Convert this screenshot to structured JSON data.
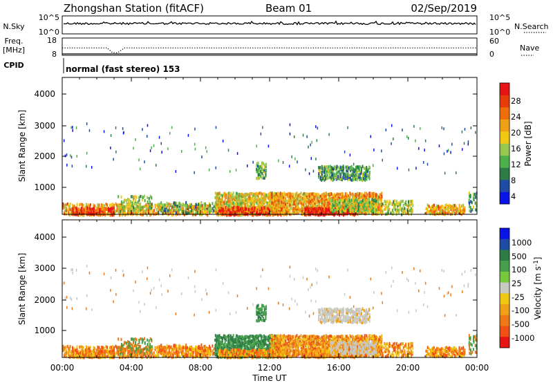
{
  "header": {
    "station": "Zhongshan Station (fitACF)",
    "beam": "Beam 01",
    "date": "02/Sep/2019"
  },
  "top_panels": {
    "nsky_label": "N.Sky",
    "nsearch_label": "N.Search",
    "nsky_ticks": [
      "10^5",
      "10^0"
    ],
    "nsearch_ticks": [
      "10^5",
      "10^0"
    ],
    "freq_label_1": "Freq.",
    "freq_label_2": "[MHz]",
    "freq_ticks": [
      "18",
      "8"
    ],
    "nave_label": "Nave",
    "nave_ticks": [
      "60",
      "0"
    ],
    "cpid_label": "CPID",
    "cpid_value": "normal (fast stereo) 153"
  },
  "colors": {
    "power": [
      "#0a14e6",
      "#1e4ba4",
      "#2d7c46",
      "#4bb24b",
      "#96c850",
      "#f0c814",
      "#f0a014",
      "#f06e0a",
      "#e63c0a",
      "#e61414"
    ],
    "velocity_pos": [
      "#0a14e6",
      "#1e4ba4",
      "#2d7c46",
      "#46a04b",
      "#78c83c"
    ],
    "velocity_ground": "#c8c8c0",
    "velocity_neg": [
      "#f0c814",
      "#f0a014",
      "#f07814",
      "#f05014",
      "#e61414"
    ]
  },
  "chart_data": [
    {
      "type": "line",
      "name": "n-sky-panel",
      "ylabel": "N.Sky",
      "y_scale": "log",
      "ylim": [
        1,
        100000
      ],
      "xlim": [
        "00:00",
        "24:00"
      ],
      "note_series": [
        "N.Sky",
        "N.Search"
      ]
    },
    {
      "type": "line",
      "name": "frequency-nave-panel",
      "ylabel": "Freq. [MHz]",
      "ylim": [
        8,
        18
      ],
      "y2label": "Nave",
      "y2lim": [
        0,
        60
      ],
      "series": [
        {
          "name": "Freq.",
          "x": [
            0,
            2.6,
            3.0,
            3.6,
            24
          ],
          "values": [
            8,
            8,
            8,
            8,
            8
          ]
        },
        {
          "name": "Nave",
          "x": [
            0,
            2.6,
            2.9,
            3.2,
            3.6,
            24
          ],
          "values": [
            26,
            26,
            6,
            5,
            26,
            26
          ]
        }
      ]
    },
    {
      "type": "heatmap",
      "name": "power-panel",
      "xlabel": "",
      "ylabel": "Slant Range [km]",
      "ylim": [
        180,
        4500
      ],
      "yticks": [
        "1000",
        "2000",
        "3000",
        "4000"
      ],
      "colorbar_label": "Power [dB]",
      "colorbar_range": [
        0,
        30
      ],
      "colorbar_ticks": [
        "4",
        "8",
        "12",
        "16",
        "20",
        "24",
        "28"
      ]
    },
    {
      "type": "heatmap",
      "name": "velocity-panel",
      "xlabel": "Time UT",
      "ylabel": "Slant Range [km]",
      "ylim": [
        180,
        4500
      ],
      "yticks": [
        "1000",
        "2000",
        "3000",
        "4000"
      ],
      "x_ticks": [
        "00:00",
        "04:00",
        "08:00",
        "12:00",
        "16:00",
        "20:00",
        "00:00"
      ],
      "colorbar_label": "Velocity [m s",
      "colorbar_label_sup": "-1",
      "colorbar_label_end": "]",
      "colorbar_ticks": [
        "1000",
        "500",
        "100",
        "25",
        "-25",
        "-100",
        "-500",
        "-1000"
      ]
    }
  ]
}
